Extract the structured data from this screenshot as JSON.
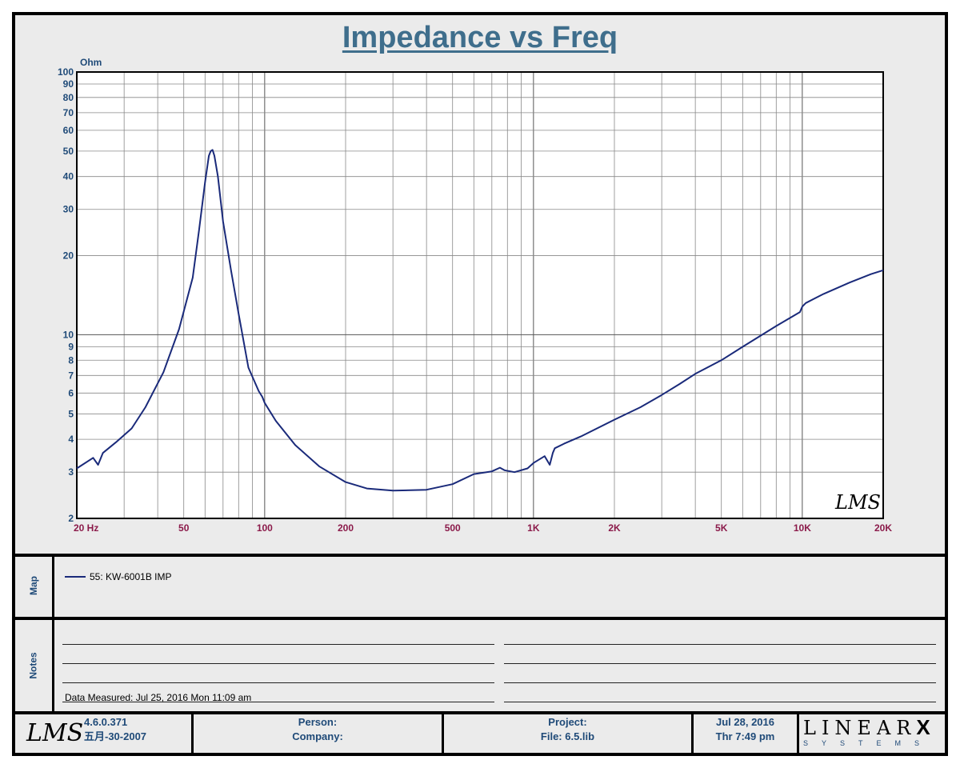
{
  "title": "Impedance vs Freq",
  "chart_data": {
    "type": "line",
    "title": "Impedance vs Freq",
    "ylabel": "Ohm",
    "xlabel": "",
    "x_scale": "log",
    "y_scale": "log",
    "xlim": [
      20,
      20000
    ],
    "ylim": [
      2,
      100
    ],
    "grid": true,
    "x_ticks": [
      {
        "v": 20,
        "label": "20  Hz"
      },
      {
        "v": 50,
        "label": "50"
      },
      {
        "v": 100,
        "label": "100"
      },
      {
        "v": 200,
        "label": "200"
      },
      {
        "v": 500,
        "label": "500"
      },
      {
        "v": 1000,
        "label": "1K"
      },
      {
        "v": 2000,
        "label": "2K"
      },
      {
        "v": 5000,
        "label": "5K"
      },
      {
        "v": 10000,
        "label": "10K"
      },
      {
        "v": 20000,
        "label": "20K"
      }
    ],
    "y_ticks": [
      {
        "v": 2,
        "label": "2"
      },
      {
        "v": 3,
        "label": "3"
      },
      {
        "v": 4,
        "label": "4"
      },
      {
        "v": 5,
        "label": "5"
      },
      {
        "v": 6,
        "label": "6"
      },
      {
        "v": 7,
        "label": "7"
      },
      {
        "v": 8,
        "label": "8"
      },
      {
        "v": 9,
        "label": "9"
      },
      {
        "v": 10,
        "label": "10"
      },
      {
        "v": 20,
        "label": "20"
      },
      {
        "v": 30,
        "label": "30"
      },
      {
        "v": 40,
        "label": "40"
      },
      {
        "v": 50,
        "label": "50"
      },
      {
        "v": 60,
        "label": "60"
      },
      {
        "v": 70,
        "label": "70"
      },
      {
        "v": 80,
        "label": "80"
      },
      {
        "v": 90,
        "label": "90"
      },
      {
        "v": 100,
        "label": "100"
      }
    ],
    "series": [
      {
        "name": "55: KW-6001B IMP",
        "color": "#1a2a7a",
        "x": [
          20,
          23,
          24,
          25,
          28,
          32,
          36,
          42,
          48,
          54,
          57,
          60,
          62,
          63,
          64,
          65,
          67,
          70,
          75,
          80,
          87,
          95,
          98,
          100,
          110,
          130,
          160,
          200,
          240,
          300,
          400,
          500,
          600,
          700,
          750,
          780,
          850,
          950,
          1000,
          1100,
          1150,
          1180,
          1200,
          1300,
          1500,
          2000,
          2500,
          3000,
          3500,
          4000,
          5000,
          6000,
          8000,
          9800,
          10000,
          10300,
          12000,
          15000,
          18000,
          20000
        ],
        "y": [
          3.1,
          3.4,
          3.2,
          3.55,
          3.9,
          4.4,
          5.3,
          7.2,
          10.5,
          16.5,
          25,
          38,
          48,
          50,
          50.5,
          48,
          40,
          27,
          17.5,
          12,
          7.5,
          6.1,
          5.8,
          5.5,
          4.7,
          3.8,
          3.15,
          2.75,
          2.6,
          2.55,
          2.57,
          2.7,
          2.95,
          3.02,
          3.12,
          3.05,
          3.0,
          3.1,
          3.25,
          3.45,
          3.2,
          3.55,
          3.7,
          3.85,
          4.1,
          4.75,
          5.3,
          5.9,
          6.5,
          7.1,
          8.0,
          9.0,
          10.8,
          12.2,
          12.8,
          13.2,
          14.3,
          15.8,
          17.0,
          17.6
        ]
      }
    ]
  },
  "legend_label": "55: KW-6001B IMP",
  "watermark": "LMS",
  "panels": {
    "map_label": "Map",
    "notes_label": "Notes"
  },
  "notes": {
    "measured": "Data Measured: Jul 25, 2016  Mon 11:09 am"
  },
  "footer": {
    "logo": "LMS",
    "version": "4.6.0.371",
    "version_date": "五月-30-2007",
    "person_label": "Person:",
    "company_label": "Company:",
    "project_label": "Project:",
    "file_label": "File: 6.5.lib",
    "date": "Jul 28, 2016",
    "time": "Thr  7:49 pm",
    "brand_top": "LINEAR",
    "brand_x": "X",
    "brand_bottom": "SYSTEMS"
  }
}
